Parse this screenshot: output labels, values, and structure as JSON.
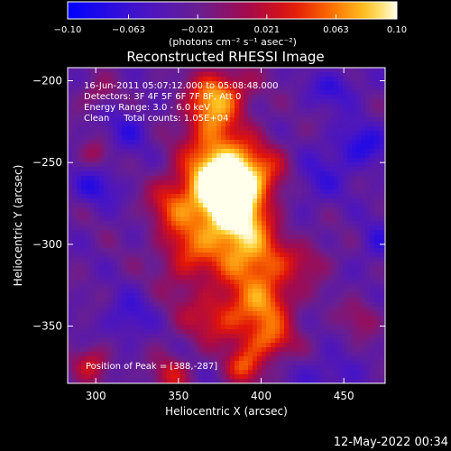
{
  "chart_data": {
    "type": "heatmap",
    "title": "Reconstructed RHESSI Image",
    "xlabel": "Heliocentric X (arcsec)",
    "ylabel": "Heliocentric Y (arcsec)",
    "xlim": [
      283,
      475
    ],
    "ylim": [
      -385,
      -192
    ],
    "x_ticks": [
      300,
      350,
      400,
      450
    ],
    "y_ticks": [
      -200,
      -250,
      -300,
      -350
    ],
    "colorbar": {
      "min": -0.1,
      "max": 0.1,
      "ticks": [
        -0.1,
        -0.063,
        -0.021,
        0.021,
        0.063,
        0.1
      ],
      "tick_labels": [
        "−0.10",
        "−0.063",
        "−0.021",
        "0.021",
        "0.063",
        "0.10"
      ],
      "unit_label": "(photons cm⁻² s⁻¹ asec⁻²)"
    },
    "annotations": [
      "16-Jun-2011 05:07:12.000 to 05:08:48.000",
      "Detectors: 3F 4F 5F 6F 7F 8F, Att 0",
      "Energy Range: 3.0 - 6.0 keV",
      "Clean     Total counts: 1.05E+04"
    ],
    "peak_label": "Position of Peak = [388,-287]",
    "peak_position": [
      388,
      -287
    ],
    "sources": [
      {
        "x": 385,
        "y": -283,
        "sx": 14,
        "sy": 18,
        "amp": 0.098
      },
      {
        "x": 375,
        "y": -270,
        "sx": 16,
        "sy": 14,
        "amp": 0.075
      },
      {
        "x": 372,
        "y": -245,
        "sx": 14,
        "sy": 22,
        "amp": 0.075
      },
      {
        "x": 368,
        "y": -215,
        "sx": 10,
        "sy": 12,
        "amp": 0.055
      },
      {
        "x": 380,
        "y": -205,
        "sx": 12,
        "sy": 10,
        "amp": 0.05
      },
      {
        "x": 395,
        "y": -255,
        "sx": 18,
        "sy": 12,
        "amp": 0.065
      },
      {
        "x": 395,
        "y": -310,
        "sx": 16,
        "sy": 14,
        "amp": 0.07
      },
      {
        "x": 378,
        "y": -345,
        "sx": 18,
        "sy": 12,
        "amp": 0.065
      },
      {
        "x": 405,
        "y": -335,
        "sx": 12,
        "sy": 14,
        "amp": 0.06
      },
      {
        "x": 355,
        "y": -305,
        "sx": 12,
        "sy": 16,
        "amp": 0.06
      },
      {
        "x": 345,
        "y": -275,
        "sx": 10,
        "sy": 12,
        "amp": 0.05
      },
      {
        "x": 390,
        "y": -375,
        "sx": 8,
        "sy": 8,
        "amp": 0.07
      },
      {
        "x": 405,
        "y": -360,
        "sx": 10,
        "sy": 8,
        "amp": 0.06
      },
      {
        "x": 298,
        "y": -373,
        "sx": 8,
        "sy": 8,
        "amp": 0.05
      },
      {
        "x": 345,
        "y": -380,
        "sx": 8,
        "sy": 8,
        "amp": 0.05
      },
      {
        "x": 300,
        "y": -245,
        "sx": 6,
        "sy": 6,
        "amp": 0.03
      },
      {
        "x": 300,
        "y": -208,
        "sx": 8,
        "sy": 6,
        "amp": 0.03
      },
      {
        "x": 430,
        "y": -310,
        "sx": 10,
        "sy": 8,
        "amp": 0.03
      },
      {
        "x": 460,
        "y": -345,
        "sx": 8,
        "sy": 8,
        "amp": 0.03
      }
    ],
    "negative_regions": [
      {
        "x": 460,
        "y": -240,
        "sx": 12,
        "sy": 10,
        "amp": -0.045
      },
      {
        "x": 430,
        "y": -260,
        "sx": 14,
        "sy": 12,
        "amp": -0.035
      },
      {
        "x": 445,
        "y": -205,
        "sx": 12,
        "sy": 8,
        "amp": -0.035
      },
      {
        "x": 300,
        "y": -265,
        "sx": 10,
        "sy": 8,
        "amp": -0.04
      },
      {
        "x": 320,
        "y": -230,
        "sx": 10,
        "sy": 10,
        "amp": -0.03
      },
      {
        "x": 320,
        "y": -345,
        "sx": 10,
        "sy": 10,
        "amp": -0.035
      },
      {
        "x": 440,
        "y": -380,
        "sx": 12,
        "sy": 8,
        "amp": -0.03
      },
      {
        "x": 470,
        "y": -300,
        "sx": 8,
        "sy": 10,
        "amp": -0.03
      }
    ]
  },
  "footer_timestamp": "12-May-2022 00:34"
}
